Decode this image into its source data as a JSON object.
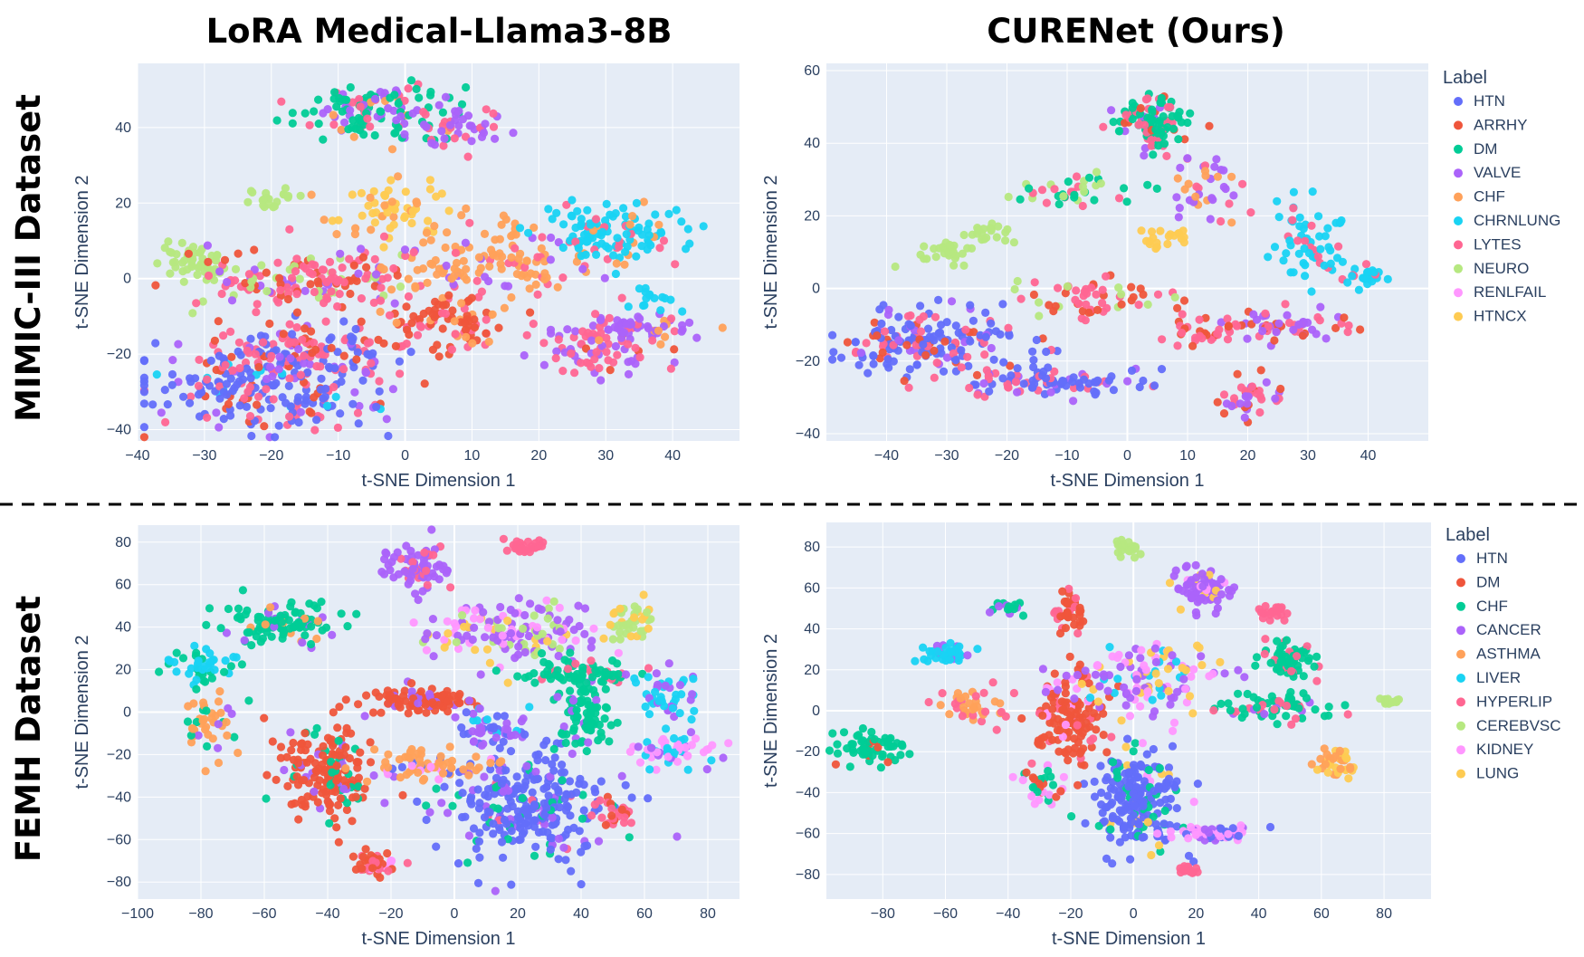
{
  "figure": {
    "titles": {
      "left": "LoRA Medical-Llama3-8B",
      "right": "CURENet (Ours)"
    },
    "row_labels": {
      "top": "MIMIC-III Dataset",
      "bottom": "FEMH Dataset"
    }
  },
  "chart_data": [
    {
      "id": "mimic-lora",
      "type": "scatter",
      "title": "LoRA Medical-Llama3-8B",
      "xlabel": "t-SNE Dimension 1",
      "ylabel": "t-SNE Dimension 2",
      "xlim": [
        -40,
        50
      ],
      "ylim": [
        -43,
        57
      ],
      "xticks": [
        -40,
        -30,
        -20,
        -10,
        0,
        10,
        20,
        30,
        40
      ],
      "yticks": [
        -40,
        -20,
        0,
        20,
        40
      ],
      "clusters": [
        {
          "x": -22,
          "y": -30,
          "sx": 9,
          "sy": 6,
          "n": 220,
          "mix": {
            "HTN": 0.55,
            "LYTES": 0.2,
            "ARRHY": 0.1,
            "VALVE": 0.1,
            "CHRNLUNG": 0.05
          }
        },
        {
          "x": -15,
          "y": -20,
          "sx": 7,
          "sy": 4,
          "n": 140,
          "mix": {
            "LYTES": 0.4,
            "HTN": 0.3,
            "VALVE": 0.15,
            "ARRHY": 0.15
          }
        },
        {
          "x": -4,
          "y": 44,
          "sx": 6,
          "sy": 4,
          "n": 140,
          "mix": {
            "DM": 0.55,
            "LYTES": 0.2,
            "VALVE": 0.15,
            "CHF": 0.1
          }
        },
        {
          "x": 8,
          "y": 40,
          "sx": 4,
          "sy": 3,
          "n": 40,
          "mix": {
            "VALVE": 0.6,
            "LYTES": 0.4
          }
        },
        {
          "x": -31,
          "y": 4,
          "sx": 3,
          "sy": 3,
          "n": 50,
          "mix": {
            "NEURO": 1
          }
        },
        {
          "x": -20,
          "y": 21,
          "sx": 2,
          "sy": 1.5,
          "n": 20,
          "mix": {
            "NEURO": 1
          }
        },
        {
          "x": -15,
          "y": 0,
          "sx": 7,
          "sy": 4,
          "n": 160,
          "mix": {
            "LYTES": 0.45,
            "ARRHY": 0.25,
            "NEURO": 0.15,
            "VALVE": 0.15
          }
        },
        {
          "x": -2,
          "y": 18,
          "sx": 4,
          "sy": 4,
          "n": 60,
          "mix": {
            "HTNCX": 0.75,
            "CHF": 0.25
          }
        },
        {
          "x": 13,
          "y": 4,
          "sx": 8,
          "sy": 6,
          "n": 140,
          "mix": {
            "CHF": 0.7,
            "LYTES": 0.2,
            "VALVE": 0.1
          }
        },
        {
          "x": 7,
          "y": -12,
          "sx": 5,
          "sy": 4,
          "n": 90,
          "mix": {
            "ARRHY": 0.5,
            "LYTES": 0.3,
            "CHF": 0.2
          }
        },
        {
          "x": 31,
          "y": 12,
          "sx": 6,
          "sy": 4,
          "n": 120,
          "mix": {
            "CHRNLUNG": 0.75,
            "LYTES": 0.15,
            "CHF": 0.1
          }
        },
        {
          "x": 28,
          "y": -18,
          "sx": 5,
          "sy": 4,
          "n": 80,
          "mix": {
            "VALVE": 0.45,
            "LYTES": 0.45,
            "ARRHY": 0.1
          }
        },
        {
          "x": 35,
          "y": -13,
          "sx": 5,
          "sy": 2,
          "n": 50,
          "mix": {
            "VALVE": 0.5,
            "LYTES": 0.3,
            "CHF": 0.2
          }
        },
        {
          "x": 37,
          "y": -6,
          "sx": 2,
          "sy": 1.5,
          "n": 15,
          "mix": {
            "CHRNLUNG": 1
          }
        }
      ]
    },
    {
      "id": "mimic-curenet",
      "type": "scatter",
      "title": "CURENet (Ours)",
      "xlabel": "t-SNE Dimension 1",
      "ylabel": "t-SNE Dimension 2",
      "xlim": [
        -50,
        50
      ],
      "ylim": [
        -42,
        62
      ],
      "xticks": [
        -40,
        -30,
        -20,
        -10,
        0,
        10,
        20,
        30,
        40
      ],
      "yticks": [
        -40,
        -20,
        0,
        20,
        40,
        60
      ],
      "legend": {
        "title": "Label",
        "labels": [
          "HTN",
          "ARRHY",
          "DM",
          "VALVE",
          "CHF",
          "CHRNLUNG",
          "LYTES",
          "NEURO",
          "RENLFAIL",
          "HTNCX"
        ],
        "colors": [
          "#636efa",
          "#ef553b",
          "#00cc96",
          "#ab63fa",
          "#ffa15a",
          "#19d3f3",
          "#ff6692",
          "#b6e880",
          "#ff97ff",
          "#fecb52"
        ]
      },
      "clusters": [
        {
          "x": -33,
          "y": -15,
          "sx": 8,
          "sy": 5,
          "n": 180,
          "mix": {
            "HTN": 0.6,
            "LYTES": 0.2,
            "VALVE": 0.1,
            "ARRHY": 0.1
          }
        },
        {
          "x": -12,
          "y": -26,
          "sx": 8,
          "sy": 2,
          "n": 90,
          "mix": {
            "HTN": 0.5,
            "LYTES": 0.3,
            "VALVE": 0.2
          }
        },
        {
          "x": 4,
          "y": 45,
          "sx": 3,
          "sy": 4,
          "n": 110,
          "mix": {
            "DM": 0.6,
            "LYTES": 0.2,
            "ARRHY": 0.1,
            "VALVE": 0.1
          }
        },
        {
          "x": -30,
          "y": 10,
          "sx": 3,
          "sy": 2,
          "n": 30,
          "mix": {
            "NEURO": 1
          }
        },
        {
          "x": -22,
          "y": 15,
          "sx": 2,
          "sy": 1.5,
          "n": 20,
          "mix": {
            "NEURO": 1
          }
        },
        {
          "x": -8,
          "y": 27,
          "sx": 4,
          "sy": 2,
          "n": 40,
          "mix": {
            "DM": 0.4,
            "NEURO": 0.3,
            "LYTES": 0.3
          }
        },
        {
          "x": 6,
          "y": 14,
          "sx": 2,
          "sy": 2,
          "n": 20,
          "mix": {
            "HTNCX": 1
          }
        },
        {
          "x": 13,
          "y": 28,
          "sx": 3,
          "sy": 4,
          "n": 40,
          "mix": {
            "VALVE": 0.5,
            "CHF": 0.3,
            "LYTES": 0.2
          }
        },
        {
          "x": 30,
          "y": 12,
          "sx": 3,
          "sy": 6,
          "n": 60,
          "mix": {
            "CHRNLUNG": 0.8,
            "LYTES": 0.2
          }
        },
        {
          "x": 40,
          "y": 3,
          "sx": 2,
          "sy": 1.5,
          "n": 25,
          "mix": {
            "CHRNLUNG": 0.7,
            "LYTES": 0.3
          }
        },
        {
          "x": -5,
          "y": -2,
          "sx": 6,
          "sy": 3,
          "n": 60,
          "mix": {
            "ARRHY": 0.4,
            "LYTES": 0.4,
            "NEURO": 0.2
          }
        },
        {
          "x": 26,
          "y": -11,
          "sx": 6,
          "sy": 2,
          "n": 60,
          "mix": {
            "VALVE": 0.5,
            "LYTES": 0.3,
            "ARRHY": 0.2
          }
        },
        {
          "x": 21,
          "y": -30,
          "sx": 3,
          "sy": 3,
          "n": 40,
          "mix": {
            "ARRHY": 0.4,
            "LYTES": 0.4,
            "VALVE": 0.2
          }
        },
        {
          "x": 12,
          "y": -12,
          "sx": 3,
          "sy": 2,
          "n": 30,
          "mix": {
            "LYTES": 0.6,
            "ARRHY": 0.4
          }
        }
      ]
    },
    {
      "id": "femh-lora",
      "type": "scatter",
      "title": "LoRA Medical-Llama3-8B",
      "xlabel": "t-SNE Dimension 1",
      "ylabel": "t-SNE Dimension 2",
      "xlim": [
        -100,
        90
      ],
      "ylim": [
        -88,
        88
      ],
      "xticks": [
        -100,
        -80,
        -60,
        -40,
        -20,
        0,
        20,
        40,
        60,
        80
      ],
      "yticks": [
        -80,
        -60,
        -40,
        -20,
        0,
        20,
        40,
        60,
        80
      ],
      "clusters": [
        {
          "x": -40,
          "y": -30,
          "sx": 8,
          "sy": 11,
          "n": 180,
          "mix": {
            "DM": 0.75,
            "CHF": 0.15,
            "CANCER": 0.1
          }
        },
        {
          "x": -55,
          "y": 42,
          "sx": 10,
          "sy": 5,
          "n": 110,
          "mix": {
            "CHF": 0.8,
            "CANCER": 0.1,
            "ASTHMA": 0.1
          }
        },
        {
          "x": -80,
          "y": 22,
          "sx": 6,
          "sy": 5,
          "n": 45,
          "mix": {
            "LIVER": 0.7,
            "CHF": 0.3
          }
        },
        {
          "x": -78,
          "y": -5,
          "sx": 5,
          "sy": 7,
          "n": 45,
          "mix": {
            "ASTHMA": 0.6,
            "CHF": 0.2,
            "CANCER": 0.2
          }
        },
        {
          "x": -12,
          "y": 68,
          "sx": 5,
          "sy": 6,
          "n": 80,
          "mix": {
            "CANCER": 0.8,
            "HYPERLIP": 0.2
          }
        },
        {
          "x": 22,
          "y": 78,
          "sx": 3,
          "sy": 2,
          "n": 30,
          "mix": {
            "HYPERLIP": 1
          }
        },
        {
          "x": 22,
          "y": -45,
          "sx": 13,
          "sy": 13,
          "n": 280,
          "mix": {
            "HTN": 0.75,
            "CHF": 0.1,
            "CANCER": 0.1,
            "HYPERLIP": 0.05
          }
        },
        {
          "x": 18,
          "y": 38,
          "sx": 14,
          "sy": 7,
          "n": 160,
          "mix": {
            "CANCER": 0.4,
            "KIDNEY": 0.3,
            "CEREBVSC": 0.15,
            "LUNG": 0.15
          }
        },
        {
          "x": -12,
          "y": 5,
          "sx": 9,
          "sy": 3,
          "n": 100,
          "mix": {
            "DM": 0.85,
            "CANCER": 0.15
          }
        },
        {
          "x": 40,
          "y": 0,
          "sx": 4,
          "sy": 9,
          "n": 90,
          "mix": {
            "CHF": 0.9,
            "CANCER": 0.1
          }
        },
        {
          "x": 38,
          "y": 18,
          "sx": 9,
          "sy": 3,
          "n": 70,
          "mix": {
            "CHF": 0.8,
            "HYPERLIP": 0.2
          }
        },
        {
          "x": 55,
          "y": 42,
          "sx": 4,
          "sy": 5,
          "n": 40,
          "mix": {
            "CEREBVSC": 0.6,
            "LUNG": 0.4
          }
        },
        {
          "x": 70,
          "y": -18,
          "sx": 6,
          "sy": 4,
          "n": 60,
          "mix": {
            "KIDNEY": 0.5,
            "LIVER": 0.3,
            "CANCER": 0.2
          }
        },
        {
          "x": 68,
          "y": 8,
          "sx": 5,
          "sy": 7,
          "n": 50,
          "mix": {
            "LIVER": 0.6,
            "CANCER": 0.4
          }
        },
        {
          "x": -25,
          "y": -72,
          "sx": 4,
          "sy": 3,
          "n": 40,
          "mix": {
            "DM": 0.4,
            "HYPERLIP": 0.3,
            "KIDNEY": 0.3
          }
        },
        {
          "x": -8,
          "y": -25,
          "sx": 10,
          "sy": 4,
          "n": 70,
          "mix": {
            "ASTHMA": 0.5,
            "KIDNEY": 0.3,
            "HTN": 0.2
          }
        },
        {
          "x": 50,
          "y": -48,
          "sx": 4,
          "sy": 4,
          "n": 25,
          "mix": {
            "HYPERLIP": 0.6,
            "DM": 0.4
          }
        },
        {
          "x": 12,
          "y": -8,
          "sx": 6,
          "sy": 5,
          "n": 50,
          "mix": {
            "CANCER": 0.5,
            "HTN": 0.3,
            "LIVER": 0.2
          }
        }
      ]
    },
    {
      "id": "femh-curenet",
      "type": "scatter",
      "title": "CURENet (Ours)",
      "xlabel": "t-SNE Dimension 1",
      "ylabel": "t-SNE Dimension 2",
      "xlim": [
        -98,
        95
      ],
      "ylim": [
        -92,
        92
      ],
      "xticks": [
        -80,
        -60,
        -40,
        -20,
        0,
        20,
        40,
        60,
        80
      ],
      "yticks": [
        -80,
        -60,
        -40,
        -20,
        0,
        20,
        40,
        60,
        80
      ],
      "legend": {
        "title": "Label",
        "labels": [
          "HTN",
          "DM",
          "CHF",
          "CANCER",
          "ASTHMA",
          "LIVER",
          "HYPERLIP",
          "CEREBVSC",
          "KIDNEY",
          "LUNG"
        ],
        "colors": [
          "#636efa",
          "#ef553b",
          "#00cc96",
          "#ab63fa",
          "#ffa15a",
          "#19d3f3",
          "#ff6692",
          "#b6e880",
          "#ff97ff",
          "#fecb52"
        ]
      },
      "clusters": [
        {
          "x": 2,
          "y": -45,
          "sx": 7,
          "sy": 12,
          "n": 220,
          "mix": {
            "HTN": 0.8,
            "CHF": 0.1,
            "LUNG": 0.05,
            "KIDNEY": 0.05
          }
        },
        {
          "x": -20,
          "y": -5,
          "sx": 6,
          "sy": 12,
          "n": 140,
          "mix": {
            "DM": 0.8,
            "HYPERLIP": 0.1,
            "KIDNEY": 0.1
          }
        },
        {
          "x": -20,
          "y": 48,
          "sx": 3,
          "sy": 5,
          "n": 40,
          "mix": {
            "DM": 0.8,
            "HYPERLIP": 0.2
          }
        },
        {
          "x": 22,
          "y": 60,
          "sx": 5,
          "sy": 5,
          "n": 80,
          "mix": {
            "CANCER": 0.8,
            "LUNG": 0.1,
            "KIDNEY": 0.1
          }
        },
        {
          "x": 45,
          "y": 47,
          "sx": 3,
          "sy": 2,
          "n": 20,
          "mix": {
            "HYPERLIP": 1
          }
        },
        {
          "x": -2,
          "y": 79,
          "sx": 2,
          "sy": 2,
          "n": 25,
          "mix": {
            "CEREBVSC": 1
          }
        },
        {
          "x": 82,
          "y": 5,
          "sx": 2,
          "sy": 1,
          "n": 12,
          "mix": {
            "CEREBVSC": 1
          }
        },
        {
          "x": 50,
          "y": 25,
          "sx": 5,
          "sy": 5,
          "n": 60,
          "mix": {
            "CHF": 0.85,
            "HYPERLIP": 0.15
          }
        },
        {
          "x": 45,
          "y": 2,
          "sx": 10,
          "sy": 4,
          "n": 70,
          "mix": {
            "CHF": 0.7,
            "HYPERLIP": 0.2,
            "CANCER": 0.1
          }
        },
        {
          "x": -83,
          "y": -18,
          "sx": 6,
          "sy": 4,
          "n": 60,
          "mix": {
            "CHF": 0.9,
            "DM": 0.1
          }
        },
        {
          "x": -60,
          "y": 28,
          "sx": 5,
          "sy": 3,
          "n": 40,
          "mix": {
            "LIVER": 0.8,
            "CANCER": 0.2
          }
        },
        {
          "x": 5,
          "y": 15,
          "sx": 12,
          "sy": 8,
          "n": 130,
          "mix": {
            "CANCER": 0.4,
            "KIDNEY": 0.3,
            "LUNG": 0.2,
            "LIVER": 0.1
          }
        },
        {
          "x": 25,
          "y": -60,
          "sx": 6,
          "sy": 2,
          "n": 50,
          "mix": {
            "KIDNEY": 0.5,
            "CANCER": 0.3,
            "HTN": 0.2
          }
        },
        {
          "x": 65,
          "y": -25,
          "sx": 3,
          "sy": 4,
          "n": 40,
          "mix": {
            "ASTHMA": 0.6,
            "LUNG": 0.4
          }
        },
        {
          "x": -53,
          "y": 2,
          "sx": 6,
          "sy": 4,
          "n": 40,
          "mix": {
            "ASTHMA": 0.6,
            "HYPERLIP": 0.4
          }
        },
        {
          "x": 18,
          "y": -78,
          "sx": 2,
          "sy": 1,
          "n": 14,
          "mix": {
            "HYPERLIP": 1
          }
        },
        {
          "x": -30,
          "y": -38,
          "sx": 4,
          "sy": 5,
          "n": 35,
          "mix": {
            "KIDNEY": 0.4,
            "DM": 0.3,
            "CHF": 0.3
          }
        },
        {
          "x": -40,
          "y": 50,
          "sx": 3,
          "sy": 2,
          "n": 18,
          "mix": {
            "CHF": 0.6,
            "CANCER": 0.4
          }
        }
      ]
    }
  ]
}
